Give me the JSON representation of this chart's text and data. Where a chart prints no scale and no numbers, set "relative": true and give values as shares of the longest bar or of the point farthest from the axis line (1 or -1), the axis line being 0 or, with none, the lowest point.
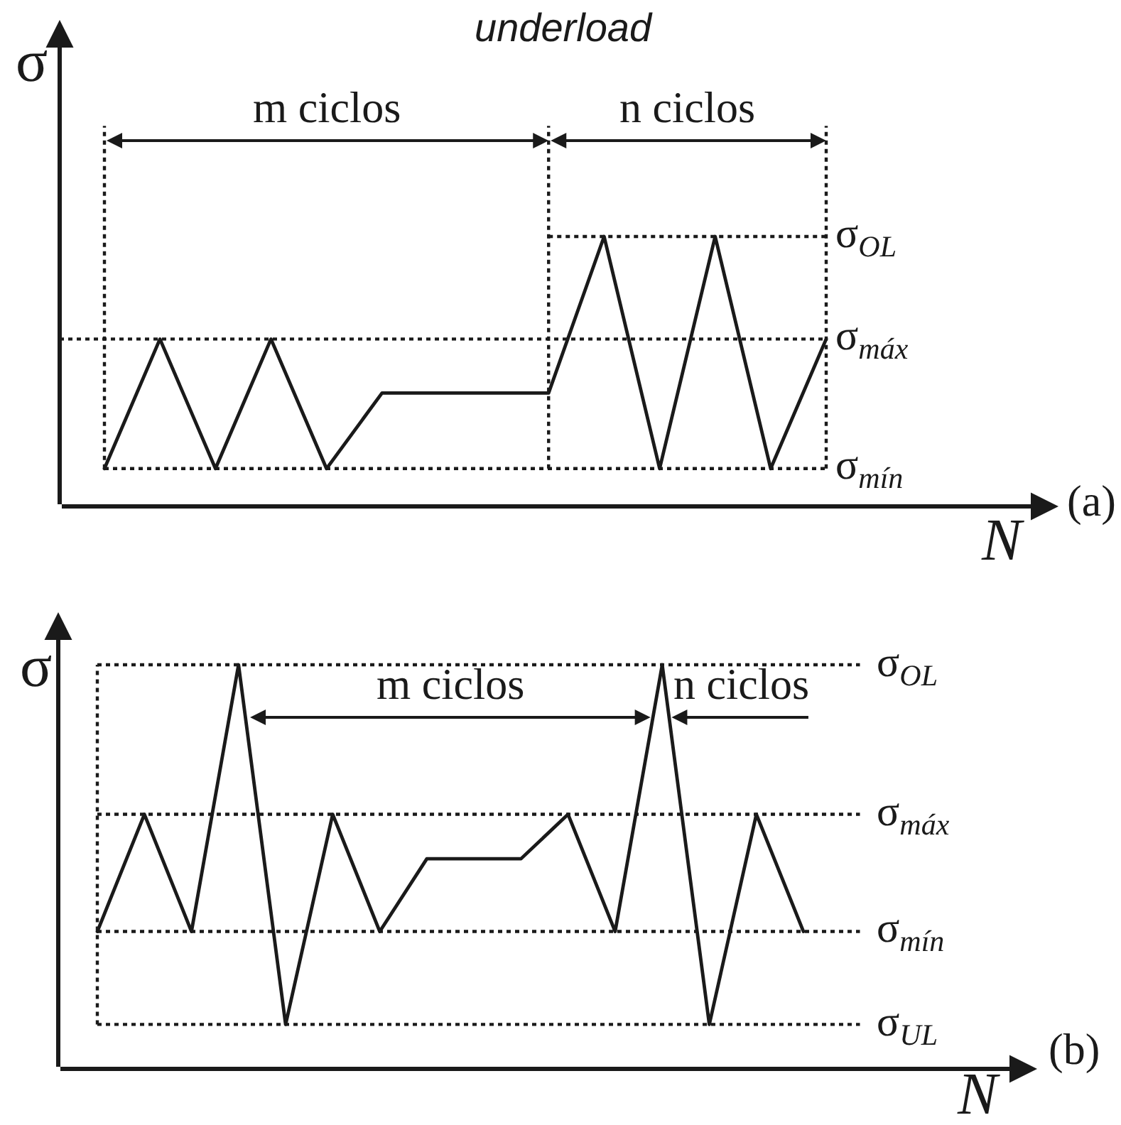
{
  "chart_data": [
    {
      "type": "line",
      "title": "underload",
      "xlabel": "N",
      "ylabel": "σ",
      "relative": true,
      "categories": [
        null,
        null,
        null,
        null,
        null,
        null,
        null,
        null,
        null,
        null,
        null,
        null,
        null,
        null
      ],
      "series": [
        {
          "color": "#1a1a1a",
          "values": [
            0.14,
            0.62,
            0.14,
            0.62,
            0.14,
            0.42,
            0.42,
            0.42,
            0.42,
            1,
            0.14,
            1,
            0.14,
            0.62
          ]
        }
      ],
      "ref_lines": [
        {
          "axis": "y",
          "value": 1,
          "label": "σ$_{OL}$",
          "line_style": "dotted"
        },
        {
          "axis": "y",
          "value": 0.62,
          "label": "σ$_{máx}$",
          "line_style": "dotted"
        },
        {
          "axis": "y",
          "value": 0.14,
          "label": "σ$_{mín}$",
          "line_style": "dotted"
        }
      ],
      "annotations": [
        "m ciclos",
        "n ciclos",
        "(a)"
      ]
    },
    {
      "type": "line",
      "xlabel": "N",
      "ylabel": "σ",
      "relative": true,
      "categories": [
        null,
        null,
        null,
        null,
        null,
        null,
        null,
        null,
        null,
        null,
        null,
        null,
        null,
        null,
        null,
        null
      ],
      "series": [
        {
          "color": "#1a1a1a",
          "values": [
            0.34,
            0.63,
            0.34,
            1,
            0.11,
            0.63,
            0.34,
            0.52,
            0.52,
            0.52,
            0.63,
            0.34,
            1,
            0.11,
            0.63,
            0.34
          ]
        }
      ],
      "ref_lines": [
        {
          "axis": "y",
          "value": 1,
          "label": "σ$_{OL}$",
          "line_style": "dotted"
        },
        {
          "axis": "y",
          "value": 0.63,
          "label": "σ$_{máx}$",
          "line_style": "dotted"
        },
        {
          "axis": "y",
          "value": 0.34,
          "label": "σ$_{mín}$",
          "line_style": "dotted"
        },
        {
          "axis": "y",
          "value": 0.11,
          "label": "σ$_{UL}$",
          "line_style": "dotted"
        }
      ],
      "annotations": [
        "m ciclos",
        "n ciclos",
        "(b)"
      ]
    }
  ]
}
